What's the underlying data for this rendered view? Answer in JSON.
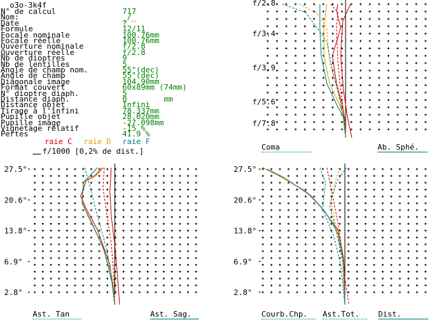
{
  "window": {
    "title": "o3o-3k4f"
  },
  "params": [
    {
      "label": "N° de calcul",
      "value": "717"
    },
    {
      "label": "Nom:",
      "value": "_/_"
    },
    {
      "label": "Date",
      "value": "?"
    },
    {
      "label": "Formule",
      "value": "12/11"
    },
    {
      "label": "Focale nominale",
      "value": "100.76mm"
    },
    {
      "label": "Focale réelle",
      "value": "100.76mm"
    },
    {
      "label": "Ouverture nominale",
      "value": "f/2.8"
    },
    {
      "label": "Ouverture réelle",
      "value": "f/2.8"
    },
    {
      "label": "Nb de dioptres",
      "value": "9"
    },
    {
      "label": "Nb de lentilles",
      "value": "5"
    },
    {
      "label": "Angle de champ nom.",
      "value": "55°(dec)"
    },
    {
      "label": "Angle de champ",
      "value": "55°(dec)"
    },
    {
      "label": "Diagonale image",
      "value": "104.90mm"
    },
    {
      "label": "Format couvert",
      "value": "60x89mm (74mm)"
    },
    {
      "label": "N° dioptre diaph.",
      "value": "5"
    },
    {
      "label": "Distance diaph.",
      "value": "0        mm"
    },
    {
      "label": "Distance objet",
      "value": "Infini"
    },
    {
      "label": "Tirage à l'infini",
      "value": "78.337mm"
    },
    {
      "label": "Pupille objet",
      "value": "28.020mm"
    },
    {
      "label": "Pupille image",
      "value": "-27.098mm"
    },
    {
      "label": "Vignetage relatif",
      "value": "-15 %"
    },
    {
      "label": "Pertes",
      "value": "41.9 %"
    }
  ],
  "legend": {
    "c": "raie C",
    "d": "raie D",
    "f": "raie F",
    "c_color": "#d00000",
    "d_color": "#e8a000",
    "f_color": "#008080",
    "scale": "f/1000 [0,2% de dist.]"
  },
  "top_right_chart": {
    "y_labels": [
      "f/2.8",
      "f/3.4",
      "f/3.9",
      "f/5.6",
      "f/7.8"
    ],
    "bottom_left": "Coma",
    "bottom_right": "Ab. Sphé."
  },
  "bottom_left_chart": {
    "y_labels": [
      "27.5°",
      "20.6°",
      "13.8°",
      "6.9°",
      "2.8°"
    ],
    "bottom_left": "Ast. Tan",
    "bottom_right": "Ast. Sag."
  },
  "bottom_right_chart": {
    "y_labels": [
      "27.5°",
      "20.6°",
      "13.8°",
      "6.9°",
      "2.8°"
    ],
    "labels": [
      "Courb.Chp.",
      "Ast.Tot.",
      "Dist."
    ]
  }
}
